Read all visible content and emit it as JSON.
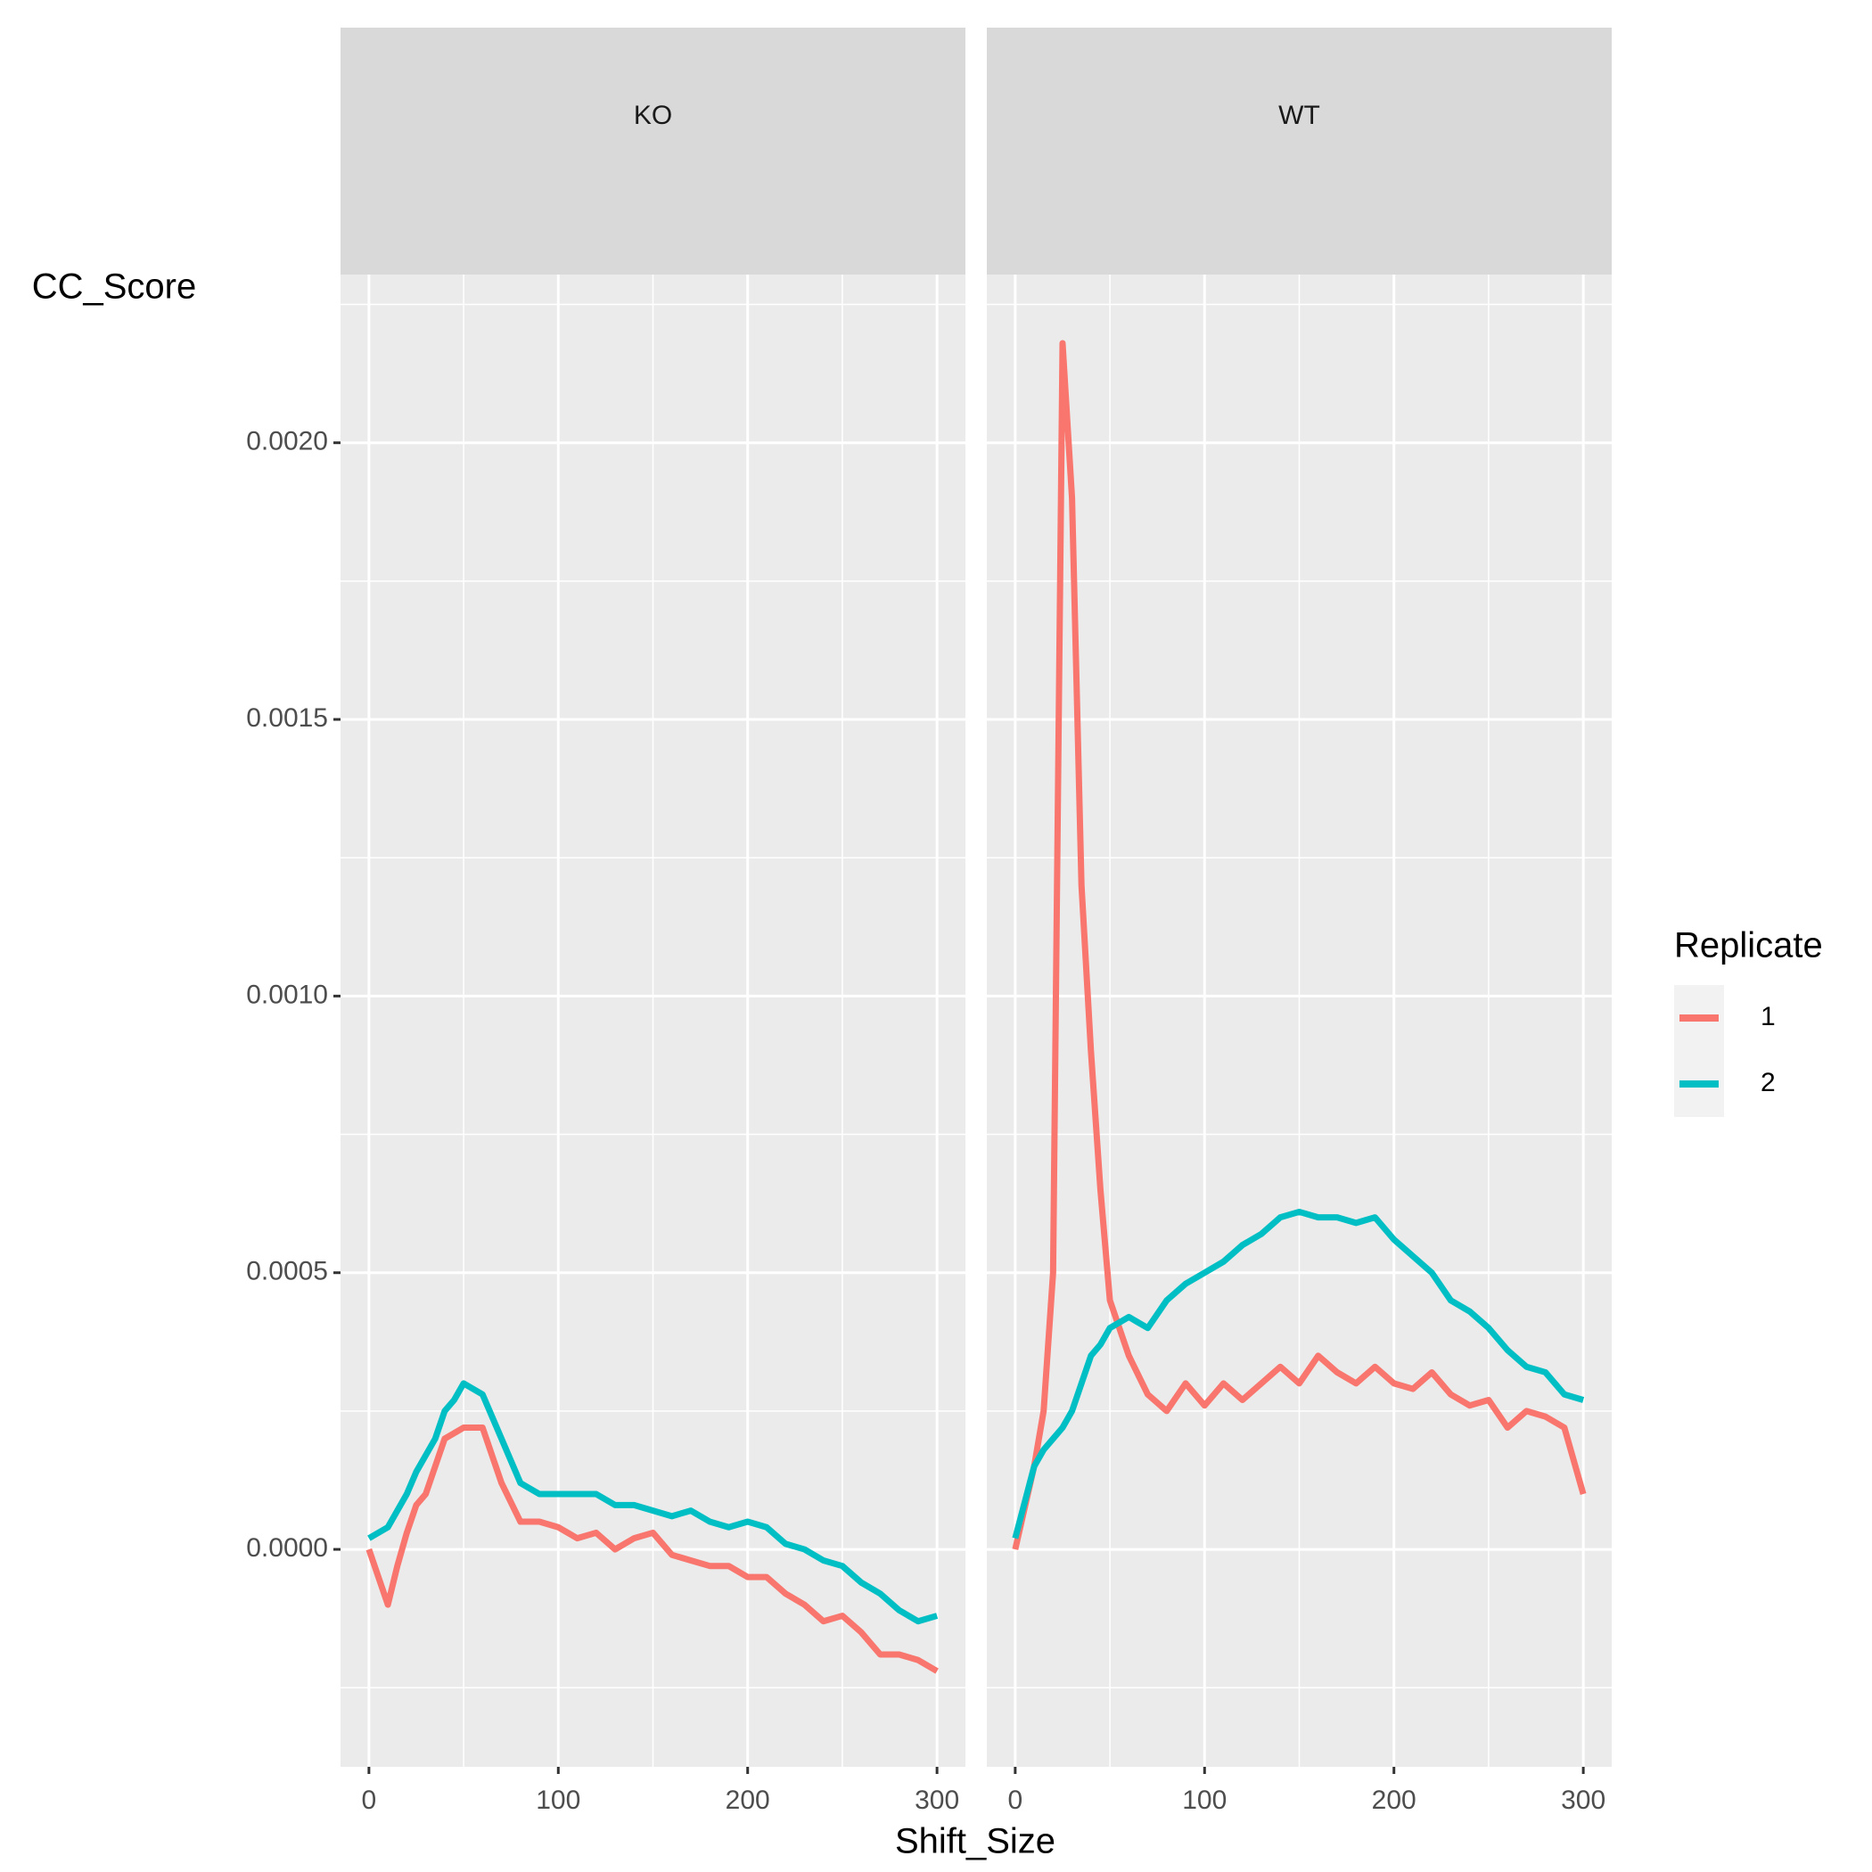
{
  "chart_data": {
    "type": "line",
    "x_label": "Shift_Size",
    "y_label": "CC_Score",
    "legend_title": "Replicate",
    "facets": [
      "KO",
      "WT"
    ],
    "x": [
      0,
      10,
      15,
      20,
      25,
      30,
      35,
      40,
      45,
      50,
      60,
      70,
      80,
      90,
      100,
      110,
      120,
      130,
      140,
      150,
      160,
      170,
      180,
      190,
      200,
      210,
      220,
      230,
      240,
      250,
      260,
      270,
      280,
      290,
      300
    ],
    "series": [
      {
        "name": "1",
        "color": "#F8766D",
        "values": [
          [
            0,
            -0.0001,
            -3e-05,
            3e-05,
            8e-05,
            0.0001,
            0.00015,
            0.0002,
            0.00021,
            0.00022,
            0.00022,
            0.00012,
            5e-05,
            5e-05,
            4e-05,
            2e-05,
            3e-05,
            0.0,
            2e-05,
            3e-05,
            -1e-05,
            -2e-05,
            -3e-05,
            -3e-05,
            -5e-05,
            -5e-05,
            -8e-05,
            -0.0001,
            -0.00013,
            -0.00012,
            -0.00015,
            -0.00019,
            -0.00019,
            -0.0002,
            -0.00022
          ],
          [
            0,
            0.00015,
            0.00025,
            0.0005,
            0.00218,
            0.0019,
            0.0012,
            0.0009,
            0.00065,
            0.00045,
            0.00035,
            0.00028,
            0.00025,
            0.0003,
            0.00026,
            0.0003,
            0.00027,
            0.0003,
            0.00033,
            0.0003,
            0.00035,
            0.00032,
            0.0003,
            0.00033,
            0.0003,
            0.00029,
            0.00032,
            0.00028,
            0.00026,
            0.00027,
            0.00022,
            0.00025,
            0.00024,
            0.00022,
            0.0001
          ]
        ]
      },
      {
        "name": "2",
        "color": "#00BFC4",
        "values": [
          [
            2e-05,
            4e-05,
            7e-05,
            0.0001,
            0.00014,
            0.00017,
            0.0002,
            0.00025,
            0.00027,
            0.0003,
            0.00028,
            0.0002,
            0.00012,
            0.0001,
            0.0001,
            0.0001,
            0.0001,
            8e-05,
            8e-05,
            7e-05,
            6e-05,
            7e-05,
            5e-05,
            4e-05,
            5e-05,
            4e-05,
            1e-05,
            0.0,
            -2e-05,
            -3e-05,
            -6e-05,
            -8e-05,
            -0.00011,
            -0.00013,
            -0.00012
          ],
          [
            2e-05,
            0.00015,
            0.00018,
            0.0002,
            0.00022,
            0.00025,
            0.0003,
            0.00035,
            0.00037,
            0.0004,
            0.00042,
            0.0004,
            0.00045,
            0.00048,
            0.0005,
            0.00052,
            0.00055,
            0.00057,
            0.0006,
            0.00061,
            0.0006,
            0.0006,
            0.00059,
            0.0006,
            0.00056,
            0.00053,
            0.0005,
            0.00045,
            0.00043,
            0.0004,
            0.00036,
            0.00033,
            0.00032,
            0.00028,
            0.00027
          ]
        ]
      }
    ],
    "xlim": [
      -15,
      315
    ],
    "ylim": [
      -0.000393,
      0.002304
    ],
    "xticks": [
      0,
      100,
      200,
      300
    ],
    "yticks": [
      {
        "value": 0,
        "label": "0.0000"
      },
      {
        "value": 0.0005,
        "label": "0.0005"
      },
      {
        "value": 0.001,
        "label": "0.0010"
      },
      {
        "value": 0.0015,
        "label": "0.0015"
      },
      {
        "value": 0.002,
        "label": "0.0020"
      }
    ],
    "x_minor_ticks": [
      50,
      150,
      250
    ],
    "y_minor_ticks": [
      -0.00025,
      0.00025,
      0.00075,
      0.00125,
      0.00175,
      0.00225
    ],
    "grid": true
  }
}
